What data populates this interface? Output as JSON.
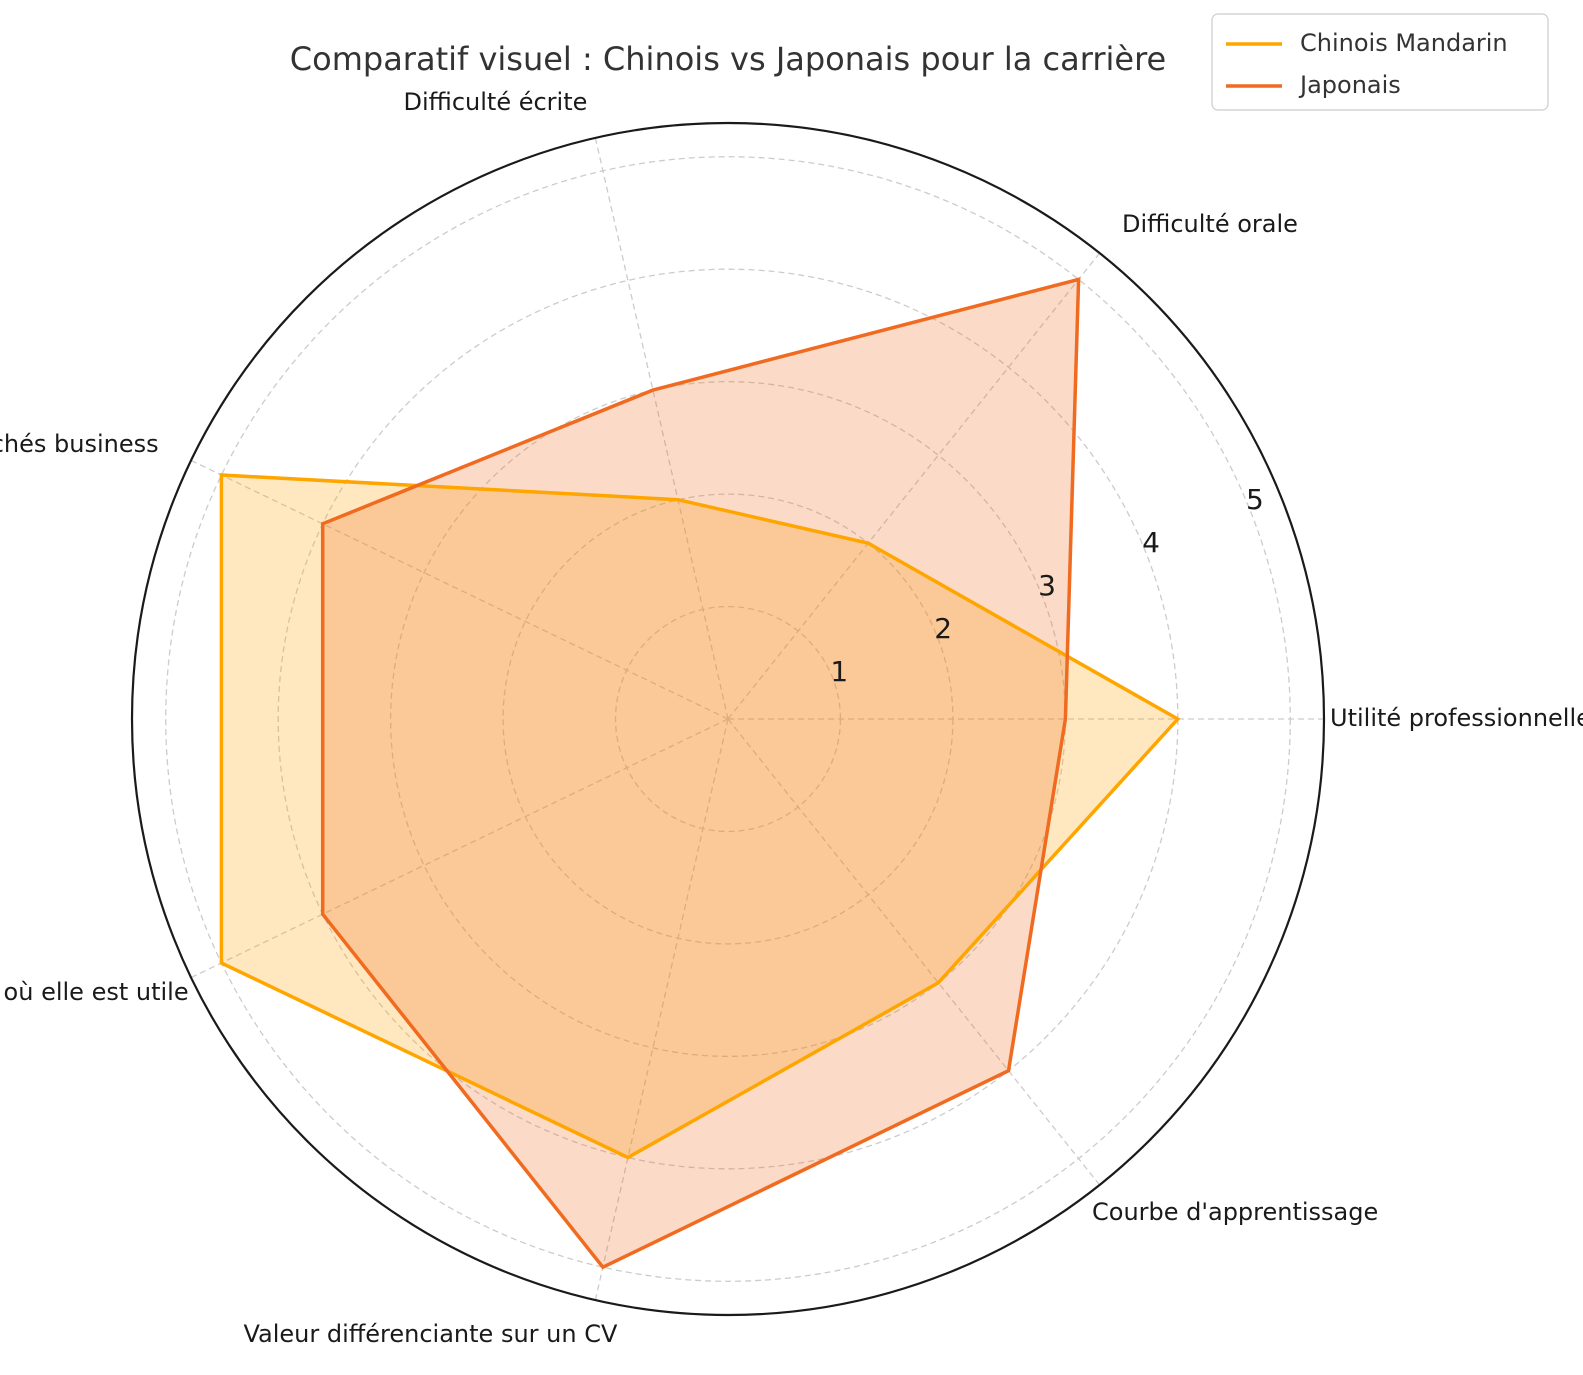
{
  "chart_data": {
    "type": "radar",
    "title": "Comparatif visuel : Chinois vs Japonais pour la carrière",
    "categories": [
      "Utilité professionnelle",
      "Difficulté orale",
      "Difficulté écrite",
      "Débouchés business",
      "Villes où elle est utile",
      "Valeur différenciante sur un CV",
      "Courbe d'apprentissage"
    ],
    "rlim": [
      0,
      5.3
    ],
    "rticks": [
      1,
      2,
      3,
      4,
      5
    ],
    "grid": true,
    "legend_position": "top-right",
    "series": [
      {
        "name": "Chinois Mandarin",
        "values": [
          4,
          2,
          2,
          5,
          5,
          4,
          3
        ],
        "color": "#FFA500"
      },
      {
        "name": "Japonais",
        "values": [
          3,
          5,
          3,
          4,
          4,
          5,
          4
        ],
        "color": "#F06A20"
      }
    ]
  }
}
